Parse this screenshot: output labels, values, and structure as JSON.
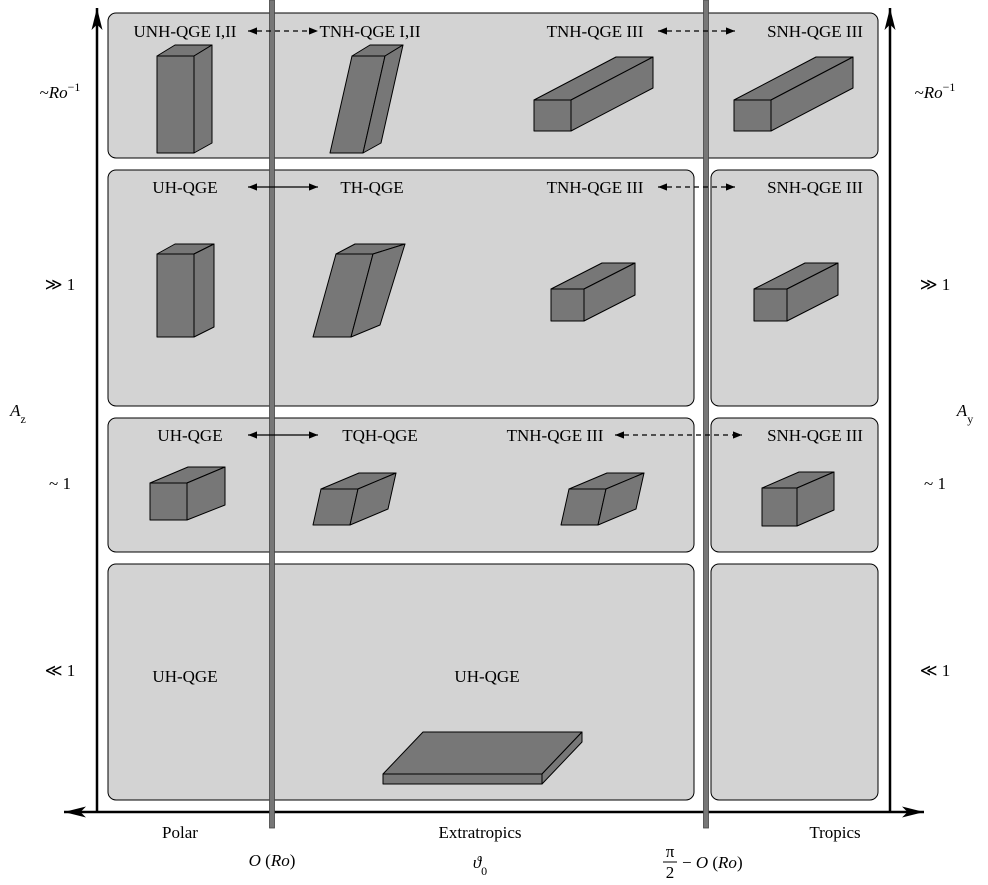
{
  "rows": [
    {
      "level": {
        "prefix": "~",
        "symbol": "Ro",
        "sup": "−1"
      },
      "labels": [
        "UNH-QGE I,II",
        "TNH-QGE I,II",
        "TNH-QGE III",
        "SNH-QGE III"
      ]
    },
    {
      "level": "≫ 1",
      "labels": [
        "UH-QGE",
        "TH-QGE",
        "TNH-QGE III",
        "SNH-QGE III"
      ]
    },
    {
      "level": "~ 1",
      "labels": [
        "UH-QGE",
        "TQH-QGE",
        "TNH-QGE III",
        "SNH-QGE III"
      ]
    },
    {
      "level": "≪ 1",
      "labels": [
        "UH-QGE",
        "UH-QGE"
      ]
    }
  ],
  "left_axis": {
    "symbol": "A",
    "sub": "z"
  },
  "right_axis": {
    "symbol": "A",
    "sub": "y"
  },
  "regions": [
    "Polar",
    "Extratropics",
    "Tropics"
  ],
  "latitudes": {
    "polar_boundary": {
      "symbol": "O",
      "paren": " (",
      "italic": "Ro",
      "close": ")"
    },
    "center": {
      "symbol": "ϑ",
      "sub": "0"
    },
    "tropical_boundary": {
      "num": "π",
      "den": "2",
      "minus": "− ",
      "symbol": "O",
      "paren": " (",
      "italic": "Ro",
      "close": ")"
    }
  }
}
